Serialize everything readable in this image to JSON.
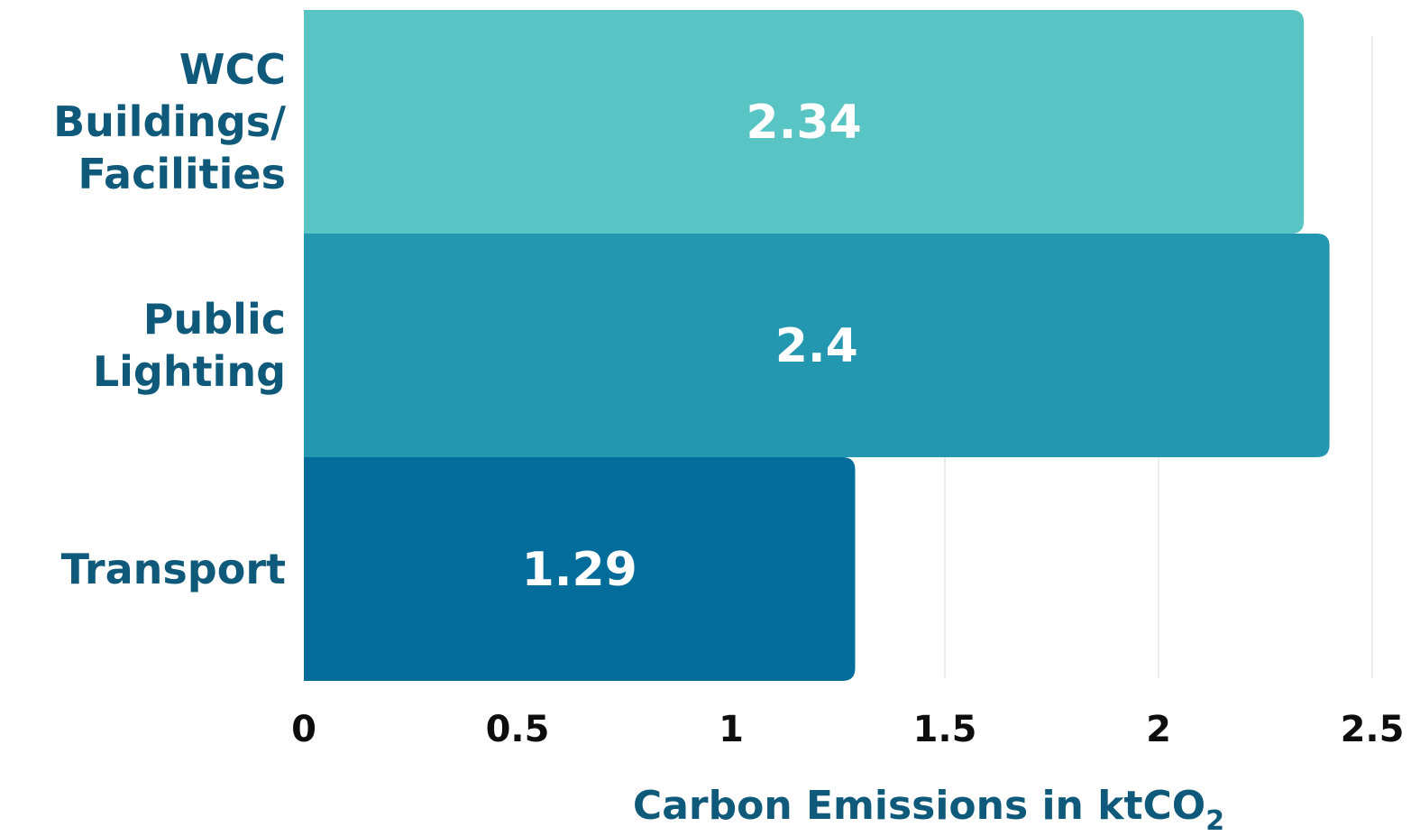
{
  "chart_data": {
    "type": "bar",
    "orientation": "horizontal",
    "categories": [
      [
        "WCC",
        "Buildings/",
        "Facilities"
      ],
      [
        "Public",
        "Lighting"
      ],
      [
        "Transport"
      ]
    ],
    "values": [
      2.34,
      2.4,
      1.29
    ],
    "value_labels": [
      "2.34",
      "2.4",
      "1.29"
    ],
    "colors": [
      "#58c4c4",
      "#2396b0",
      "#026d9a"
    ],
    "xlabel": "Carbon Emissions in ktCO",
    "xlabel_subscript": "2",
    "xlim": [
      0,
      2.5
    ],
    "xticks": [
      0,
      0.5,
      1,
      1.5,
      2,
      2.5
    ],
    "xtick_labels": [
      "0",
      "0.5",
      "1",
      "1.5",
      "2",
      "2.5"
    ],
    "grid": "vertical",
    "legend": "none"
  },
  "colors": {
    "category_text": "#0f5a7a",
    "tick_text": "#0d0d0d",
    "gridline": "#e6e6e6",
    "value_text": "#ffffff"
  }
}
